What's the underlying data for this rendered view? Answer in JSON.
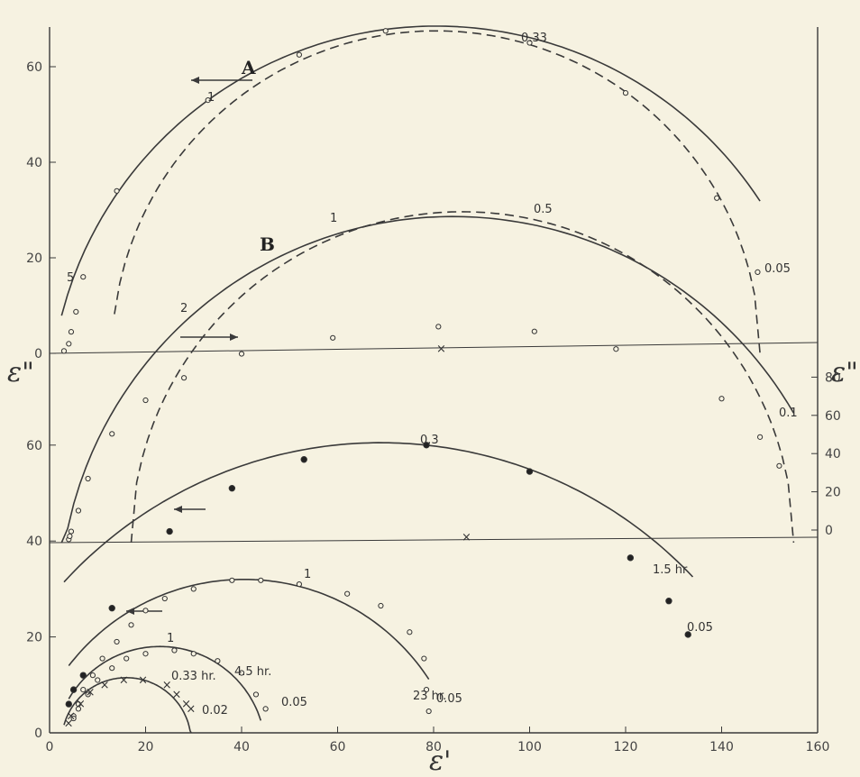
{
  "chart_data": {
    "type": "scatter",
    "title": "",
    "xlabel": "ε'",
    "ylabel_left": "ε\"",
    "ylabel_right": "ε\"",
    "xlim": [
      0,
      160
    ],
    "x_ticks": [
      0,
      20,
      40,
      60,
      80,
      100,
      120,
      140,
      160
    ],
    "panels": [
      {
        "name": "upper",
        "axis": "left",
        "ylim": [
          0,
          70
        ],
        "y_ticks": [
          0,
          20,
          40,
          60
        ],
        "curves": [
          {
            "label": "A",
            "center": [
              80.5,
              -12
            ],
            "radius": 80.5,
            "from": 0,
            "to": 148,
            "style": "solid",
            "points": [
              [
                3,
                0.5
              ],
              [
                4,
                2
              ],
              [
                4.5,
                4.5
              ],
              [
                5.5,
                8.7
              ],
              [
                7,
                16
              ],
              [
                14,
                34
              ],
              [
                33,
                53
              ],
              [
                52,
                62.5
              ],
              [
                70,
                67.5
              ],
              [
                100,
                65
              ],
              [
                120,
                54.5
              ],
              [
                139,
                32.5
              ],
              [
                147.5,
                17
              ]
            ]
          },
          {
            "label": "A-dashed",
            "center": [
              80.5,
              0
            ],
            "radius": 67,
            "from": 14,
            "to": 148,
            "style": "dashed"
          }
        ],
        "annotations": [
          "A",
          "5",
          "1",
          "0.33",
          "0.05"
        ]
      },
      {
        "name": "middle",
        "axis": "right",
        "ylim": [
          0,
          100
        ],
        "y_ticks": [
          0,
          20,
          40,
          60,
          80
        ],
        "curves": [
          {
            "label": "B",
            "center": [
              84.5,
              0
            ],
            "radius": 68,
            "from": 15,
            "to": 156,
            "style": "solid",
            "points": [
              [
                4,
                1
              ],
              [
                4.2,
                2
              ],
              [
                4.5,
                3.5
              ],
              [
                6,
                10
              ],
              [
                8,
                20
              ],
              [
                13,
                34
              ],
              [
                20,
                44.5
              ],
              [
                28,
                51.5
              ],
              [
                40,
                59
              ],
              [
                59,
                64
              ],
              [
                81,
                67.5
              ],
              [
                101,
                66
              ],
              [
                118,
                60.5
              ],
              [
                140,
                45
              ],
              [
                148,
                33
              ],
              [
                152,
                24
              ]
            ]
          },
          {
            "label": "B-dashed",
            "center": [
              86,
              0
            ],
            "radius": 70,
            "from": 16,
            "to": 156,
            "style": "dashed"
          }
        ],
        "annotations": [
          "B",
          "2",
          "1",
          "0.5",
          "0.1"
        ]
      },
      {
        "name": "lower",
        "axis": "left",
        "ylim": [
          0,
          70
        ],
        "y_ticks": [
          0,
          20,
          40,
          60
        ],
        "series": [
          {
            "name": "1.5 hr",
            "marker": "filled-circle",
            "points": [
              [
                4,
                6
              ],
              [
                5,
                9
              ],
              [
                7,
                12
              ],
              [
                13,
                26
              ],
              [
                25,
                42
              ],
              [
                38,
                51
              ],
              [
                53,
                57
              ],
              [
                78.5,
                60
              ],
              [
                100,
                54.5
              ],
              [
                121,
                36.5
              ],
              [
                129,
                27.5
              ],
              [
                133,
                20.5
              ]
            ],
            "freq_labels": [
              "0.3",
              "0.05"
            ]
          },
          {
            "name": "23 hr.",
            "marker": "open-circle",
            "points": [
              [
                5,
                3.5
              ],
              [
                6,
                6
              ],
              [
                7,
                9
              ],
              [
                9,
                12
              ],
              [
                11,
                15.5
              ],
              [
                14,
                19
              ],
              [
                17,
                22.5
              ],
              [
                20,
                25.5
              ],
              [
                24,
                28
              ],
              [
                30,
                30
              ],
              [
                38,
                31.8
              ],
              [
                44,
                31.8
              ],
              [
                52,
                31
              ],
              [
                62,
                29
              ],
              [
                69,
                26.5
              ],
              [
                75,
                21
              ],
              [
                78,
                15.5
              ],
              [
                78.5,
                9
              ],
              [
                79,
                4.5
              ]
            ],
            "freq_labels": [
              "1",
              "0.05"
            ]
          },
          {
            "name": "4.5 hr.",
            "marker": "open-circle",
            "points": [
              [
                5,
                3
              ],
              [
                6,
                5
              ],
              [
                8,
                8
              ],
              [
                10,
                11
              ],
              [
                13,
                13.5
              ],
              [
                16,
                15.5
              ],
              [
                20,
                16.5
              ],
              [
                26,
                17.2
              ],
              [
                30,
                16.5
              ],
              [
                35,
                15
              ],
              [
                40,
                12.5
              ],
              [
                43,
                8
              ],
              [
                45,
                5
              ]
            ],
            "freq_labels": [
              "1",
              "0.05"
            ]
          },
          {
            "name": "0.33 hr.",
            "marker": "cross",
            "points": [
              [
                3.5,
                2
              ],
              [
                4,
                3.5
              ],
              [
                6,
                6
              ],
              [
                8,
                8.5
              ],
              [
                11,
                10
              ],
              [
                15,
                11
              ],
              [
                19,
                11
              ],
              [
                24,
                10
              ],
              [
                26,
                8
              ],
              [
                28,
                6
              ],
              [
                29,
                5
              ]
            ],
            "freq_labels": [
              "0.02"
            ]
          }
        ]
      }
    ]
  }
}
